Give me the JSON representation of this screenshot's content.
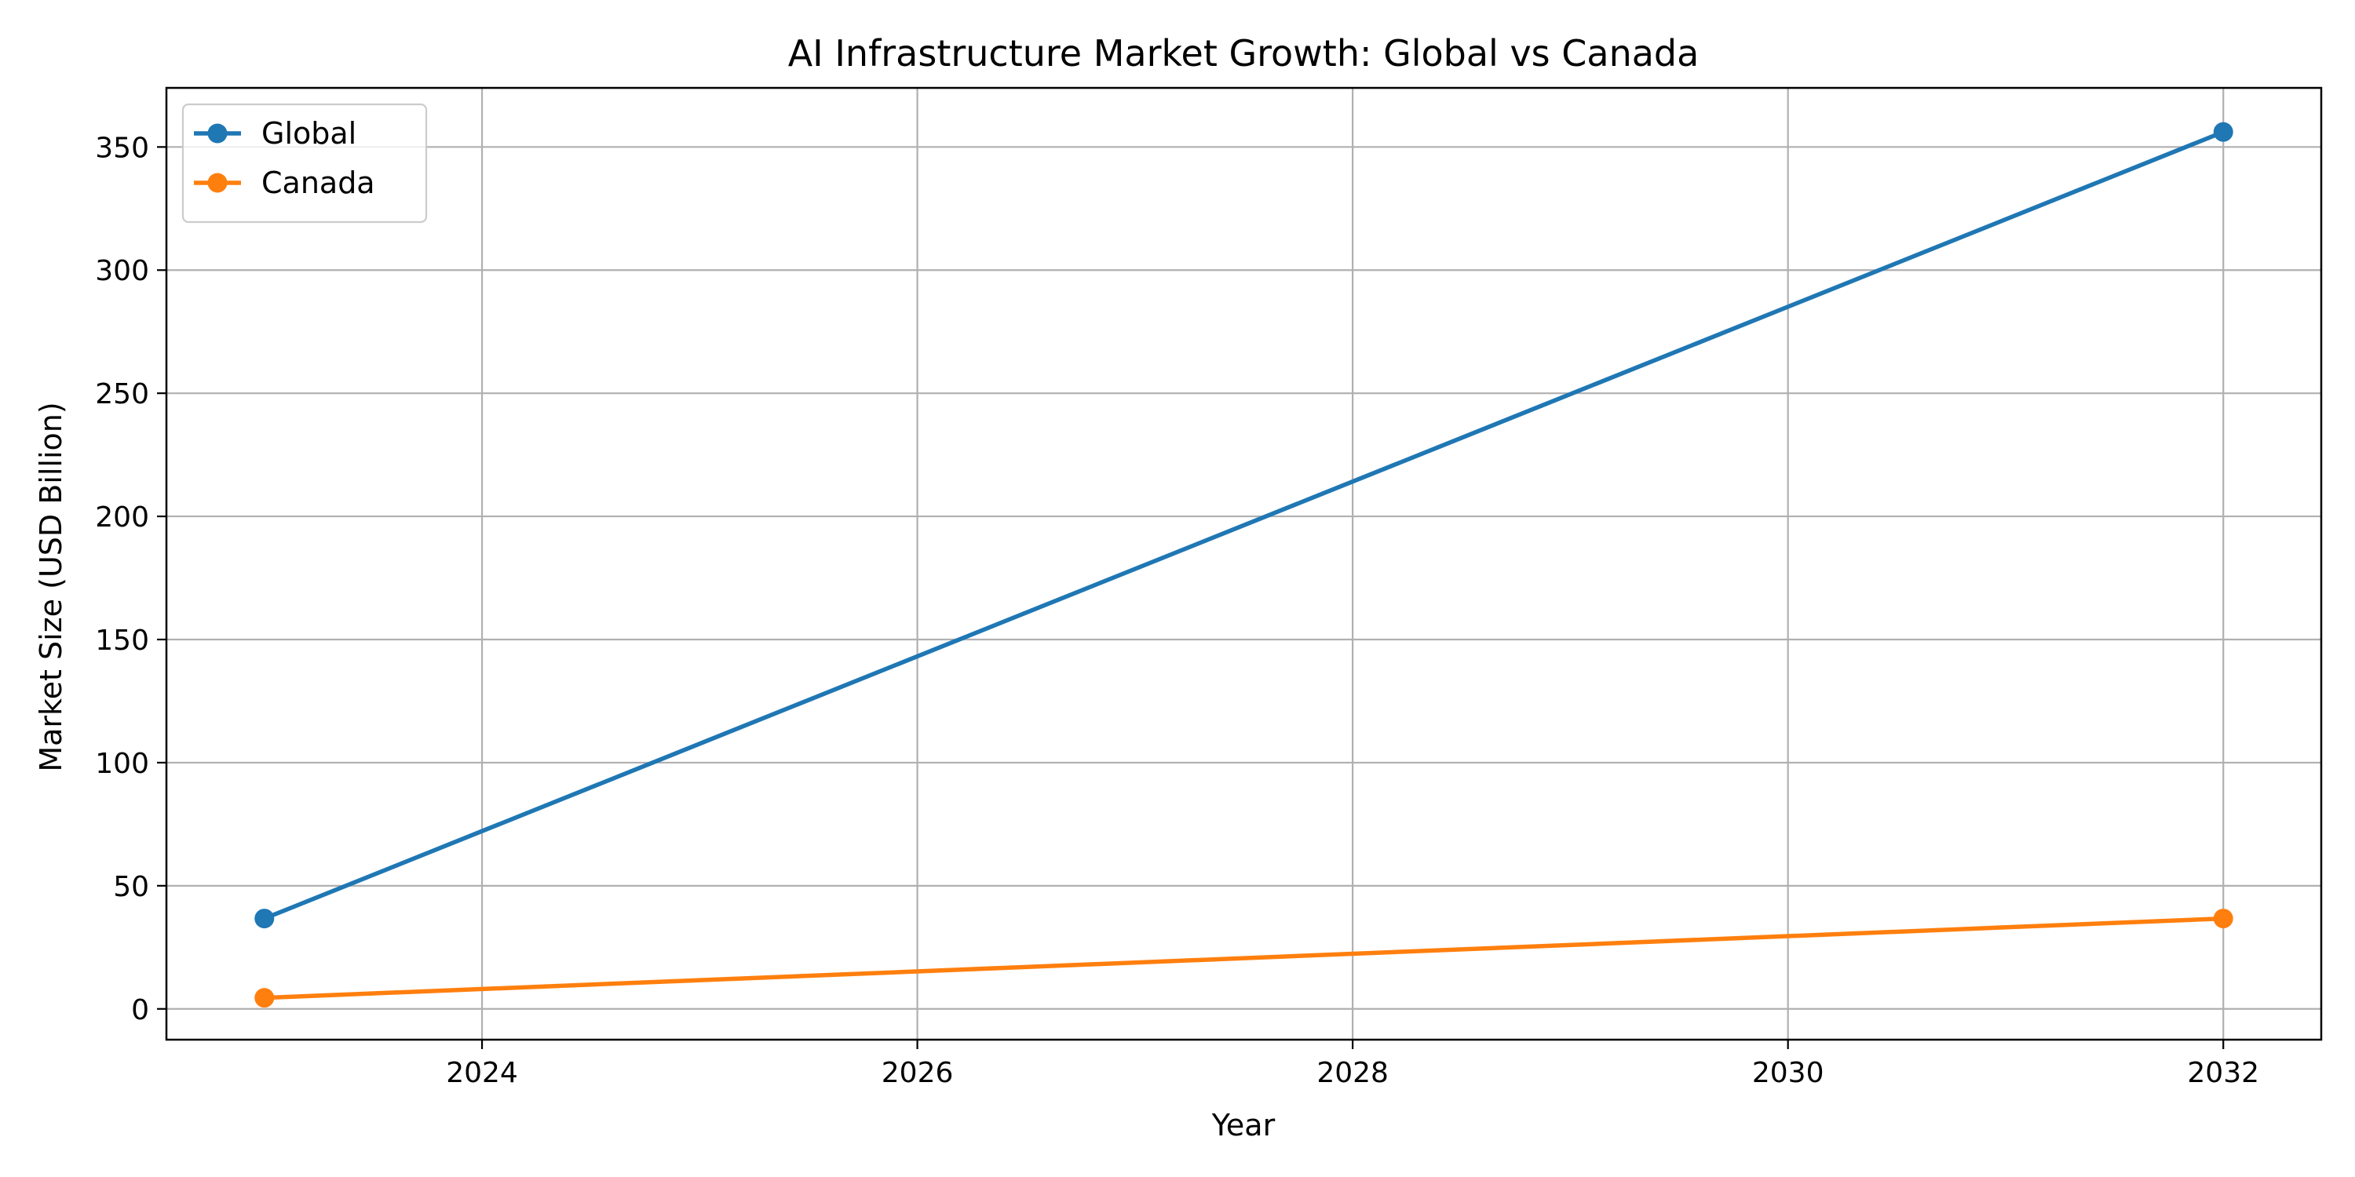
{
  "chart_data": {
    "type": "line",
    "title": "AI Infrastructure Market Growth: Global vs Canada",
    "xlabel": "Year",
    "ylabel": "Market Size (USD Billion)",
    "xlim": [
      2022.55,
      2032.45
    ],
    "ylim": [
      -12.5,
      374
    ],
    "xticks": [
      2024,
      2026,
      2028,
      2030,
      2032
    ],
    "yticks": [
      0,
      50,
      100,
      150,
      200,
      250,
      300,
      350
    ],
    "grid": true,
    "legend_position": "top-left",
    "series": [
      {
        "name": "Global",
        "color": "#1f77b4",
        "x": [
          2023,
          2032
        ],
        "y": [
          36.7,
          356.1
        ]
      },
      {
        "name": "Canada",
        "color": "#ff7f0e",
        "x": [
          2023,
          2032
        ],
        "y": [
          4.5,
          36.7
        ]
      }
    ]
  }
}
